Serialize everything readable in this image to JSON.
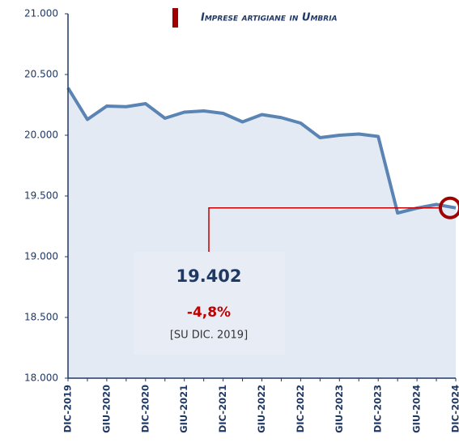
{
  "chart_data": {
    "type": "area",
    "title": "Imprese artigiane in Umbria",
    "categories": [
      "DIC-2019",
      null,
      "GIU-2020",
      null,
      "DIC-2020",
      null,
      "GIU-2021",
      null,
      "DIC-2021",
      null,
      "GIU-2022",
      null,
      "DIC-2022",
      null,
      "GIU-2023",
      null,
      "DIC-2023",
      null,
      "GIU-2024",
      null,
      "DIC-2024"
    ],
    "series": [
      {
        "name": "Imprese artigiane in Umbria",
        "color": "#5a84b3",
        "values": [
          20390,
          20130,
          20240,
          20235,
          20260,
          20140,
          20190,
          20200,
          20180,
          20110,
          20170,
          20145,
          20100,
          19980,
          20000,
          20010,
          19990,
          19360,
          19400,
          19430,
          19402
        ],
        "value_labels": [
          null,
          null,
          null,
          null,
          null,
          null,
          null,
          null,
          null,
          null,
          null,
          null,
          null,
          null,
          null,
          null,
          null,
          null,
          null,
          null,
          "19.402"
        ]
      }
    ],
    "annotations": [
      "-4,8%",
      "[SU DIC. 2019]"
    ],
    "ylim": [
      18000,
      21000
    ],
    "yticks": [
      {
        "value": 18000,
        "label": "18.000"
      },
      {
        "value": 18500,
        "label": "18.500"
      },
      {
        "value": 19000,
        "label": "19.000"
      },
      {
        "value": 19500,
        "label": "19.500"
      },
      {
        "value": 20000,
        "label": "20.000"
      },
      {
        "value": 20500,
        "label": "20.500"
      },
      {
        "value": 21000,
        "label": "21.000"
      }
    ],
    "legend_marker_color": "#a00000",
    "fill_color": "#e4eaf3"
  }
}
